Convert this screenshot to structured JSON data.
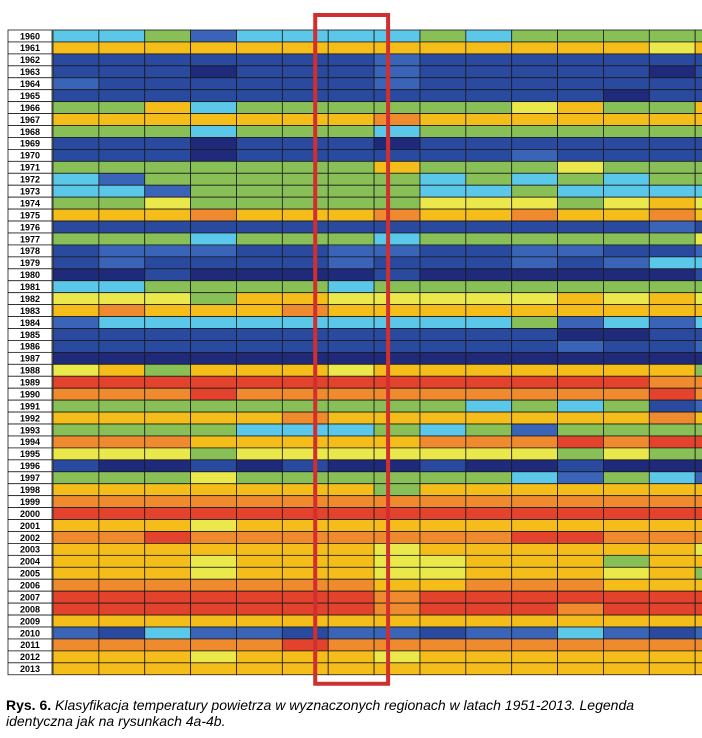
{
  "chart_data": {
    "type": "heatmap",
    "title": "",
    "xlabel": "",
    "ylabel": "",
    "colors": {
      "1": "#1f2a7a",
      "2": "#2a4aa0",
      "3": "#3a64b8",
      "4": "#5bc8ea",
      "5": "#88c057",
      "6": "#ebe84b",
      "7": "#f4bd1a",
      "8": "#ef8a2e",
      "9": "#e3432c"
    },
    "highlight": {
      "column_index": 6,
      "color": "#d12f2f"
    },
    "rows": [
      {
        "year": "1960",
        "classes": [
          4,
          4,
          5,
          3,
          4,
          4,
          4,
          4,
          5,
          4,
          5,
          5,
          5,
          5,
          5
        ]
      },
      {
        "year": "1961",
        "classes": [
          7,
          7,
          7,
          7,
          7,
          7,
          7,
          7,
          7,
          7,
          7,
          7,
          7,
          6,
          7
        ]
      },
      {
        "year": "1962",
        "classes": [
          2,
          2,
          2,
          2,
          2,
          2,
          2,
          3,
          2,
          2,
          2,
          2,
          2,
          2,
          2
        ]
      },
      {
        "year": "1963",
        "classes": [
          2,
          2,
          2,
          1,
          2,
          2,
          2,
          3,
          2,
          2,
          2,
          2,
          2,
          1,
          2
        ]
      },
      {
        "year": "1964",
        "classes": [
          3,
          2,
          2,
          2,
          2,
          2,
          2,
          3,
          2,
          2,
          2,
          2,
          2,
          2,
          2
        ]
      },
      {
        "year": "1965",
        "classes": [
          2,
          2,
          2,
          2,
          2,
          2,
          2,
          2,
          2,
          2,
          2,
          2,
          1,
          2,
          2
        ]
      },
      {
        "year": "1966",
        "classes": [
          5,
          5,
          7,
          4,
          5,
          5,
          5,
          5,
          5,
          5,
          6,
          7,
          5,
          5,
          7
        ]
      },
      {
        "year": "1967",
        "classes": [
          7,
          7,
          7,
          7,
          7,
          7,
          7,
          8,
          7,
          7,
          7,
          7,
          7,
          7,
          7
        ]
      },
      {
        "year": "1968",
        "classes": [
          5,
          5,
          5,
          4,
          5,
          5,
          5,
          4,
          5,
          5,
          5,
          5,
          5,
          5,
          5
        ]
      },
      {
        "year": "1969",
        "classes": [
          2,
          2,
          2,
          1,
          2,
          2,
          2,
          1,
          2,
          2,
          2,
          2,
          2,
          2,
          2
        ]
      },
      {
        "year": "1970",
        "classes": [
          2,
          2,
          2,
          1,
          2,
          2,
          2,
          2,
          2,
          2,
          3,
          2,
          2,
          2,
          2
        ]
      },
      {
        "year": "1971",
        "classes": [
          5,
          5,
          5,
          5,
          5,
          5,
          5,
          7,
          5,
          5,
          5,
          6,
          5,
          5,
          5
        ]
      },
      {
        "year": "1972",
        "classes": [
          4,
          3,
          5,
          5,
          5,
          5,
          5,
          5,
          4,
          5,
          4,
          5,
          4,
          5,
          5
        ]
      },
      {
        "year": "1973",
        "classes": [
          4,
          4,
          3,
          5,
          5,
          5,
          5,
          5,
          4,
          4,
          5,
          4,
          4,
          4,
          4
        ]
      },
      {
        "year": "1974",
        "classes": [
          5,
          5,
          6,
          5,
          5,
          5,
          5,
          5,
          6,
          6,
          6,
          5,
          6,
          7,
          6
        ]
      },
      {
        "year": "1975",
        "classes": [
          7,
          7,
          7,
          8,
          7,
          7,
          7,
          8,
          7,
          7,
          8,
          7,
          7,
          8,
          7
        ]
      },
      {
        "year": "1976",
        "classes": [
          2,
          2,
          2,
          2,
          2,
          2,
          2,
          2,
          2,
          2,
          2,
          2,
          2,
          3,
          2
        ]
      },
      {
        "year": "1977",
        "classes": [
          5,
          5,
          5,
          4,
          5,
          5,
          5,
          4,
          5,
          5,
          5,
          5,
          5,
          5,
          6
        ]
      },
      {
        "year": "1978",
        "classes": [
          2,
          3,
          3,
          3,
          2,
          2,
          3,
          3,
          2,
          2,
          3,
          3,
          2,
          2,
          3
        ]
      },
      {
        "year": "1979",
        "classes": [
          2,
          3,
          2,
          2,
          2,
          2,
          3,
          2,
          2,
          2,
          3,
          2,
          3,
          4,
          4
        ]
      },
      {
        "year": "1980",
        "classes": [
          1,
          1,
          2,
          1,
          1,
          1,
          1,
          2,
          1,
          1,
          1,
          1,
          1,
          1,
          2
        ]
      },
      {
        "year": "1981",
        "classes": [
          4,
          4,
          5,
          5,
          5,
          5,
          4,
          5,
          5,
          5,
          5,
          5,
          5,
          5,
          5
        ]
      },
      {
        "year": "1982",
        "classes": [
          6,
          6,
          6,
          5,
          7,
          7,
          6,
          6,
          6,
          6,
          6,
          7,
          6,
          7,
          6
        ]
      },
      {
        "year": "1983",
        "classes": [
          7,
          8,
          7,
          7,
          7,
          8,
          7,
          7,
          7,
          7,
          7,
          7,
          7,
          7,
          7
        ]
      },
      {
        "year": "1984",
        "classes": [
          3,
          4,
          4,
          4,
          4,
          4,
          4,
          4,
          4,
          4,
          5,
          3,
          4,
          3,
          4
        ]
      },
      {
        "year": "1985",
        "classes": [
          2,
          2,
          2,
          2,
          2,
          2,
          2,
          2,
          2,
          2,
          2,
          1,
          1,
          2,
          2
        ]
      },
      {
        "year": "1986",
        "classes": [
          2,
          2,
          2,
          2,
          2,
          2,
          2,
          2,
          2,
          2,
          2,
          3,
          2,
          2,
          3
        ]
      },
      {
        "year": "1987",
        "classes": [
          1,
          1,
          1,
          1,
          1,
          1,
          1,
          1,
          1,
          1,
          1,
          1,
          1,
          1,
          1
        ]
      },
      {
        "year": "1988",
        "classes": [
          6,
          7,
          5,
          7,
          7,
          7,
          6,
          7,
          7,
          7,
          7,
          7,
          7,
          7,
          5
        ]
      },
      {
        "year": "1989",
        "classes": [
          9,
          9,
          9,
          9,
          9,
          9,
          9,
          9,
          9,
          9,
          9,
          9,
          9,
          8,
          8
        ]
      },
      {
        "year": "1990",
        "classes": [
          8,
          8,
          8,
          9,
          8,
          8,
          8,
          8,
          8,
          8,
          8,
          8,
          8,
          9,
          8
        ]
      },
      {
        "year": "1991",
        "classes": [
          5,
          5,
          5,
          5,
          5,
          5,
          5,
          5,
          5,
          4,
          5,
          4,
          5,
          2,
          3
        ]
      },
      {
        "year": "1992",
        "classes": [
          7,
          7,
          7,
          7,
          7,
          8,
          7,
          7,
          7,
          7,
          7,
          7,
          7,
          8,
          7
        ]
      },
      {
        "year": "1993",
        "classes": [
          5,
          5,
          5,
          5,
          4,
          4,
          4,
          5,
          4,
          5,
          3,
          5,
          5,
          5,
          5
        ]
      },
      {
        "year": "1994",
        "classes": [
          8,
          8,
          8,
          7,
          7,
          7,
          7,
          7,
          8,
          8,
          8,
          9,
          8,
          9,
          9
        ]
      },
      {
        "year": "1995",
        "classes": [
          6,
          6,
          6,
          5,
          6,
          6,
          6,
          6,
          6,
          6,
          6,
          5,
          6,
          5,
          5
        ]
      },
      {
        "year": "1996",
        "classes": [
          2,
          1,
          1,
          2,
          1,
          2,
          1,
          1,
          2,
          1,
          1,
          2,
          1,
          1,
          1
        ]
      },
      {
        "year": "1997",
        "classes": [
          5,
          5,
          5,
          6,
          5,
          5,
          5,
          5,
          5,
          5,
          4,
          3,
          5,
          4,
          3
        ]
      },
      {
        "year": "1998",
        "classes": [
          7,
          7,
          7,
          7,
          7,
          7,
          7,
          5,
          7,
          7,
          7,
          7,
          7,
          7,
          7
        ]
      },
      {
        "year": "1999",
        "classes": [
          8,
          8,
          8,
          8,
          8,
          8,
          8,
          8,
          8,
          8,
          8,
          8,
          8,
          8,
          8
        ]
      },
      {
        "year": "2000",
        "classes": [
          9,
          9,
          9,
          9,
          9,
          9,
          9,
          9,
          9,
          9,
          9,
          9,
          9,
          9,
          9
        ]
      },
      {
        "year": "2001",
        "classes": [
          7,
          7,
          7,
          6,
          7,
          7,
          7,
          7,
          7,
          7,
          7,
          7,
          7,
          7,
          7
        ]
      },
      {
        "year": "2002",
        "classes": [
          8,
          8,
          9,
          8,
          8,
          8,
          8,
          8,
          8,
          8,
          9,
          9,
          8,
          8,
          8
        ]
      },
      {
        "year": "2003",
        "classes": [
          7,
          7,
          7,
          7,
          7,
          7,
          7,
          6,
          7,
          7,
          7,
          7,
          7,
          7,
          6
        ]
      },
      {
        "year": "2004",
        "classes": [
          7,
          7,
          7,
          6,
          7,
          7,
          7,
          6,
          6,
          7,
          7,
          7,
          5,
          7,
          7
        ]
      },
      {
        "year": "2005",
        "classes": [
          7,
          7,
          7,
          6,
          7,
          7,
          7,
          6,
          6,
          7,
          7,
          7,
          6,
          7,
          5
        ]
      },
      {
        "year": "2006",
        "classes": [
          8,
          8,
          8,
          8,
          8,
          8,
          8,
          7,
          7,
          8,
          8,
          8,
          7,
          7,
          7
        ]
      },
      {
        "year": "2007",
        "classes": [
          9,
          9,
          9,
          9,
          9,
          9,
          9,
          8,
          9,
          9,
          9,
          9,
          9,
          9,
          9
        ]
      },
      {
        "year": "2008",
        "classes": [
          9,
          9,
          9,
          9,
          9,
          9,
          9,
          8,
          9,
          9,
          9,
          8,
          9,
          9,
          9
        ]
      },
      {
        "year": "2009",
        "classes": [
          7,
          7,
          7,
          7,
          7,
          7,
          7,
          7,
          7,
          7,
          7,
          7,
          7,
          7,
          7
        ]
      },
      {
        "year": "2010",
        "classes": [
          3,
          2,
          4,
          3,
          3,
          2,
          3,
          3,
          2,
          3,
          3,
          4,
          3,
          2,
          3
        ]
      },
      {
        "year": "2011",
        "classes": [
          8,
          8,
          8,
          8,
          8,
          9,
          8,
          8,
          8,
          8,
          8,
          8,
          8,
          8,
          8
        ]
      },
      {
        "year": "2012",
        "classes": [
          7,
          7,
          7,
          6,
          7,
          7,
          7,
          6,
          7,
          7,
          7,
          7,
          7,
          7,
          7
        ]
      },
      {
        "year": "2013",
        "classes": [
          7,
          7,
          7,
          7,
          7,
          7,
          7,
          7,
          7,
          7,
          7,
          7,
          7,
          7,
          7
        ]
      }
    ]
  },
  "caption": {
    "label": "Rys. 6.",
    "text": "Klasyfikacja temperatury powietrza w wyznaczonych regionach w latach 1951-2013. Legenda identyczna jak na rysunkach 4a-4b."
  }
}
